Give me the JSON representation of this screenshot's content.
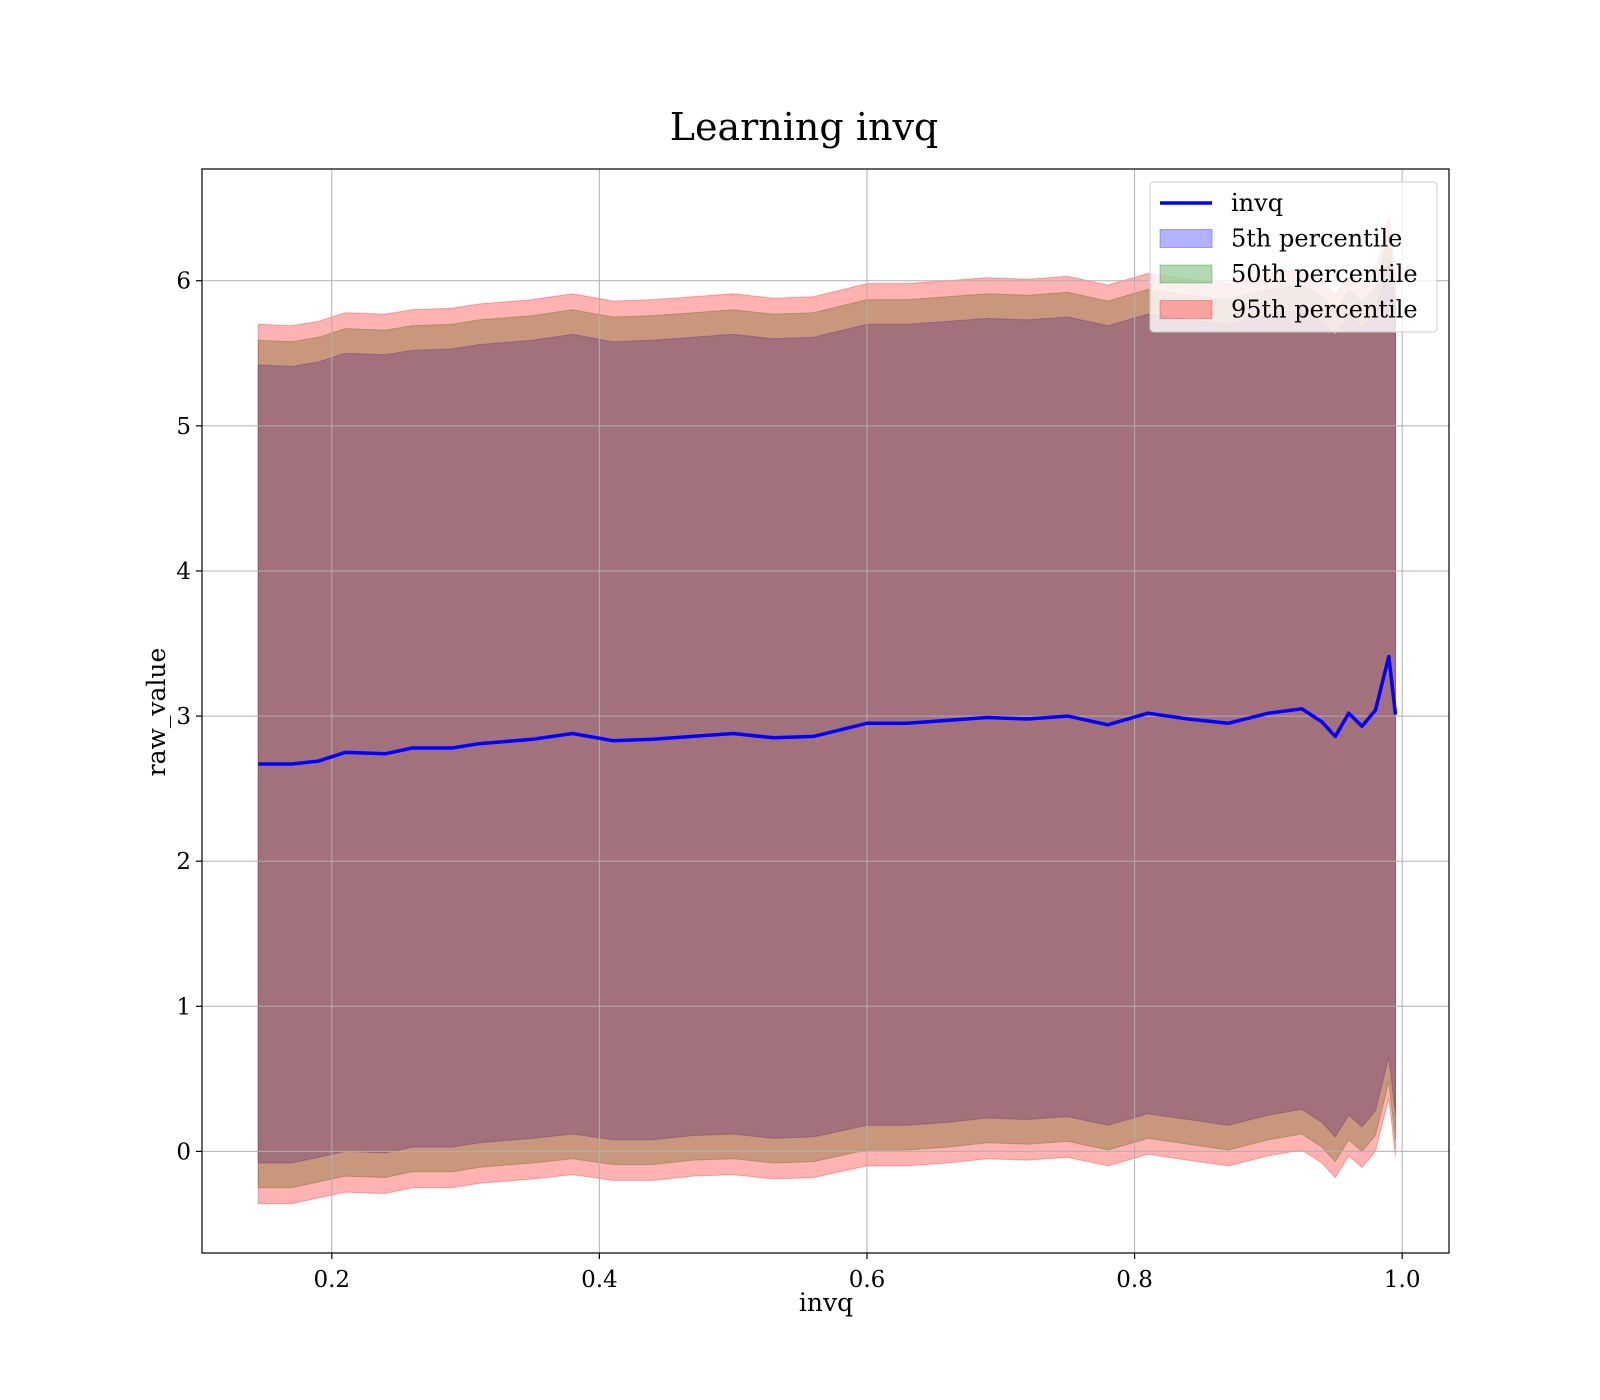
{
  "chart_data": {
    "type": "area",
    "title": "Learning invq",
    "xlabel": "invq",
    "ylabel": "raw_value",
    "xlim": [
      0.103,
      1.035
    ],
    "ylim": [
      -0.7,
      6.77
    ],
    "xticks": [
      0.2,
      0.4,
      0.6,
      0.8,
      1.0
    ],
    "xtick_labels": [
      "0.2",
      "0.4",
      "0.6",
      "0.8",
      "1.0"
    ],
    "yticks": [
      0,
      1,
      2,
      3,
      4,
      5,
      6
    ],
    "ytick_labels": [
      "0",
      "1",
      "2",
      "3",
      "4",
      "5",
      "6"
    ],
    "grid": true,
    "legend_position": "top-right",
    "legend": [
      {
        "label": "invq",
        "kind": "line",
        "color": "#0000ff"
      },
      {
        "label": "5th percentile",
        "kind": "patch",
        "color": "#0000ff"
      },
      {
        "label": "50th percentile",
        "kind": "patch",
        "color": "#008000"
      },
      {
        "label": "95th percentile",
        "kind": "patch",
        "color": "#ff0000"
      }
    ],
    "x": [
      0.145,
      0.17,
      0.19,
      0.21,
      0.24,
      0.26,
      0.29,
      0.31,
      0.35,
      0.38,
      0.41,
      0.44,
      0.47,
      0.5,
      0.53,
      0.56,
      0.6,
      0.63,
      0.66,
      0.69,
      0.72,
      0.75,
      0.78,
      0.81,
      0.84,
      0.87,
      0.9,
      0.925,
      0.94,
      0.95,
      0.96,
      0.97,
      0.98,
      0.99,
      0.995
    ],
    "series": [
      {
        "name": "invq",
        "kind": "line",
        "color": "#0000ff",
        "values": [
          2.67,
          2.67,
          2.69,
          2.75,
          2.74,
          2.78,
          2.78,
          2.81,
          2.84,
          2.88,
          2.83,
          2.84,
          2.86,
          2.88,
          2.85,
          2.86,
          2.95,
          2.95,
          2.97,
          2.99,
          2.98,
          3.0,
          2.94,
          3.02,
          2.98,
          2.95,
          3.02,
          3.05,
          2.96,
          2.86,
          3.02,
          2.93,
          3.04,
          3.41,
          3.01
        ]
      },
      {
        "name": "5th percentile",
        "kind": "band",
        "color": "#0000ff",
        "lower": [
          -0.08,
          -0.08,
          -0.04,
          0.0,
          -0.01,
          0.03,
          0.03,
          0.06,
          0.09,
          0.12,
          0.08,
          0.08,
          0.11,
          0.12,
          0.09,
          0.1,
          0.18,
          0.18,
          0.2,
          0.23,
          0.22,
          0.24,
          0.18,
          0.26,
          0.22,
          0.18,
          0.25,
          0.29,
          0.2,
          0.1,
          0.25,
          0.17,
          0.28,
          0.65,
          0.25
        ],
        "upper": [
          5.42,
          5.41,
          5.44,
          5.5,
          5.49,
          5.52,
          5.53,
          5.56,
          5.59,
          5.63,
          5.58,
          5.59,
          5.61,
          5.63,
          5.6,
          5.61,
          5.7,
          5.7,
          5.72,
          5.74,
          5.73,
          5.75,
          5.69,
          5.77,
          5.73,
          5.7,
          5.77,
          5.8,
          5.72,
          5.62,
          5.77,
          5.68,
          5.79,
          6.16,
          5.76
        ]
      },
      {
        "name": "50th percentile",
        "kind": "band",
        "color": "#008000",
        "lower": [
          -0.25,
          -0.25,
          -0.21,
          -0.17,
          -0.18,
          -0.14,
          -0.14,
          -0.11,
          -0.08,
          -0.05,
          -0.09,
          -0.09,
          -0.06,
          -0.05,
          -0.08,
          -0.07,
          0.01,
          0.01,
          0.03,
          0.06,
          0.05,
          0.07,
          0.01,
          0.09,
          0.05,
          0.01,
          0.08,
          0.12,
          0.03,
          -0.07,
          0.08,
          0.0,
          0.11,
          0.48,
          0.08
        ],
        "upper": [
          5.59,
          5.58,
          5.61,
          5.67,
          5.66,
          5.69,
          5.7,
          5.73,
          5.76,
          5.8,
          5.75,
          5.76,
          5.78,
          5.8,
          5.77,
          5.78,
          5.87,
          5.87,
          5.89,
          5.91,
          5.9,
          5.92,
          5.86,
          5.94,
          5.9,
          5.87,
          5.94,
          5.97,
          5.89,
          5.79,
          5.94,
          5.85,
          5.96,
          6.33,
          5.93
        ]
      },
      {
        "name": "95th percentile",
        "kind": "band",
        "color": "#ff0000",
        "lower": [
          -0.36,
          -0.36,
          -0.32,
          -0.28,
          -0.29,
          -0.25,
          -0.25,
          -0.22,
          -0.19,
          -0.16,
          -0.2,
          -0.2,
          -0.17,
          -0.16,
          -0.19,
          -0.18,
          -0.1,
          -0.1,
          -0.08,
          -0.05,
          -0.06,
          -0.04,
          -0.1,
          -0.02,
          -0.06,
          -0.1,
          -0.03,
          0.01,
          -0.08,
          -0.18,
          -0.03,
          -0.11,
          0.0,
          0.37,
          -0.03
        ],
        "upper": [
          5.7,
          5.69,
          5.72,
          5.78,
          5.77,
          5.8,
          5.81,
          5.84,
          5.87,
          5.91,
          5.86,
          5.87,
          5.89,
          5.91,
          5.88,
          5.89,
          5.98,
          5.98,
          6.0,
          6.02,
          6.01,
          6.03,
          5.97,
          6.05,
          6.01,
          5.98,
          6.05,
          6.08,
          6.0,
          5.9,
          6.05,
          5.96,
          6.07,
          6.44,
          6.04
        ]
      }
    ]
  }
}
